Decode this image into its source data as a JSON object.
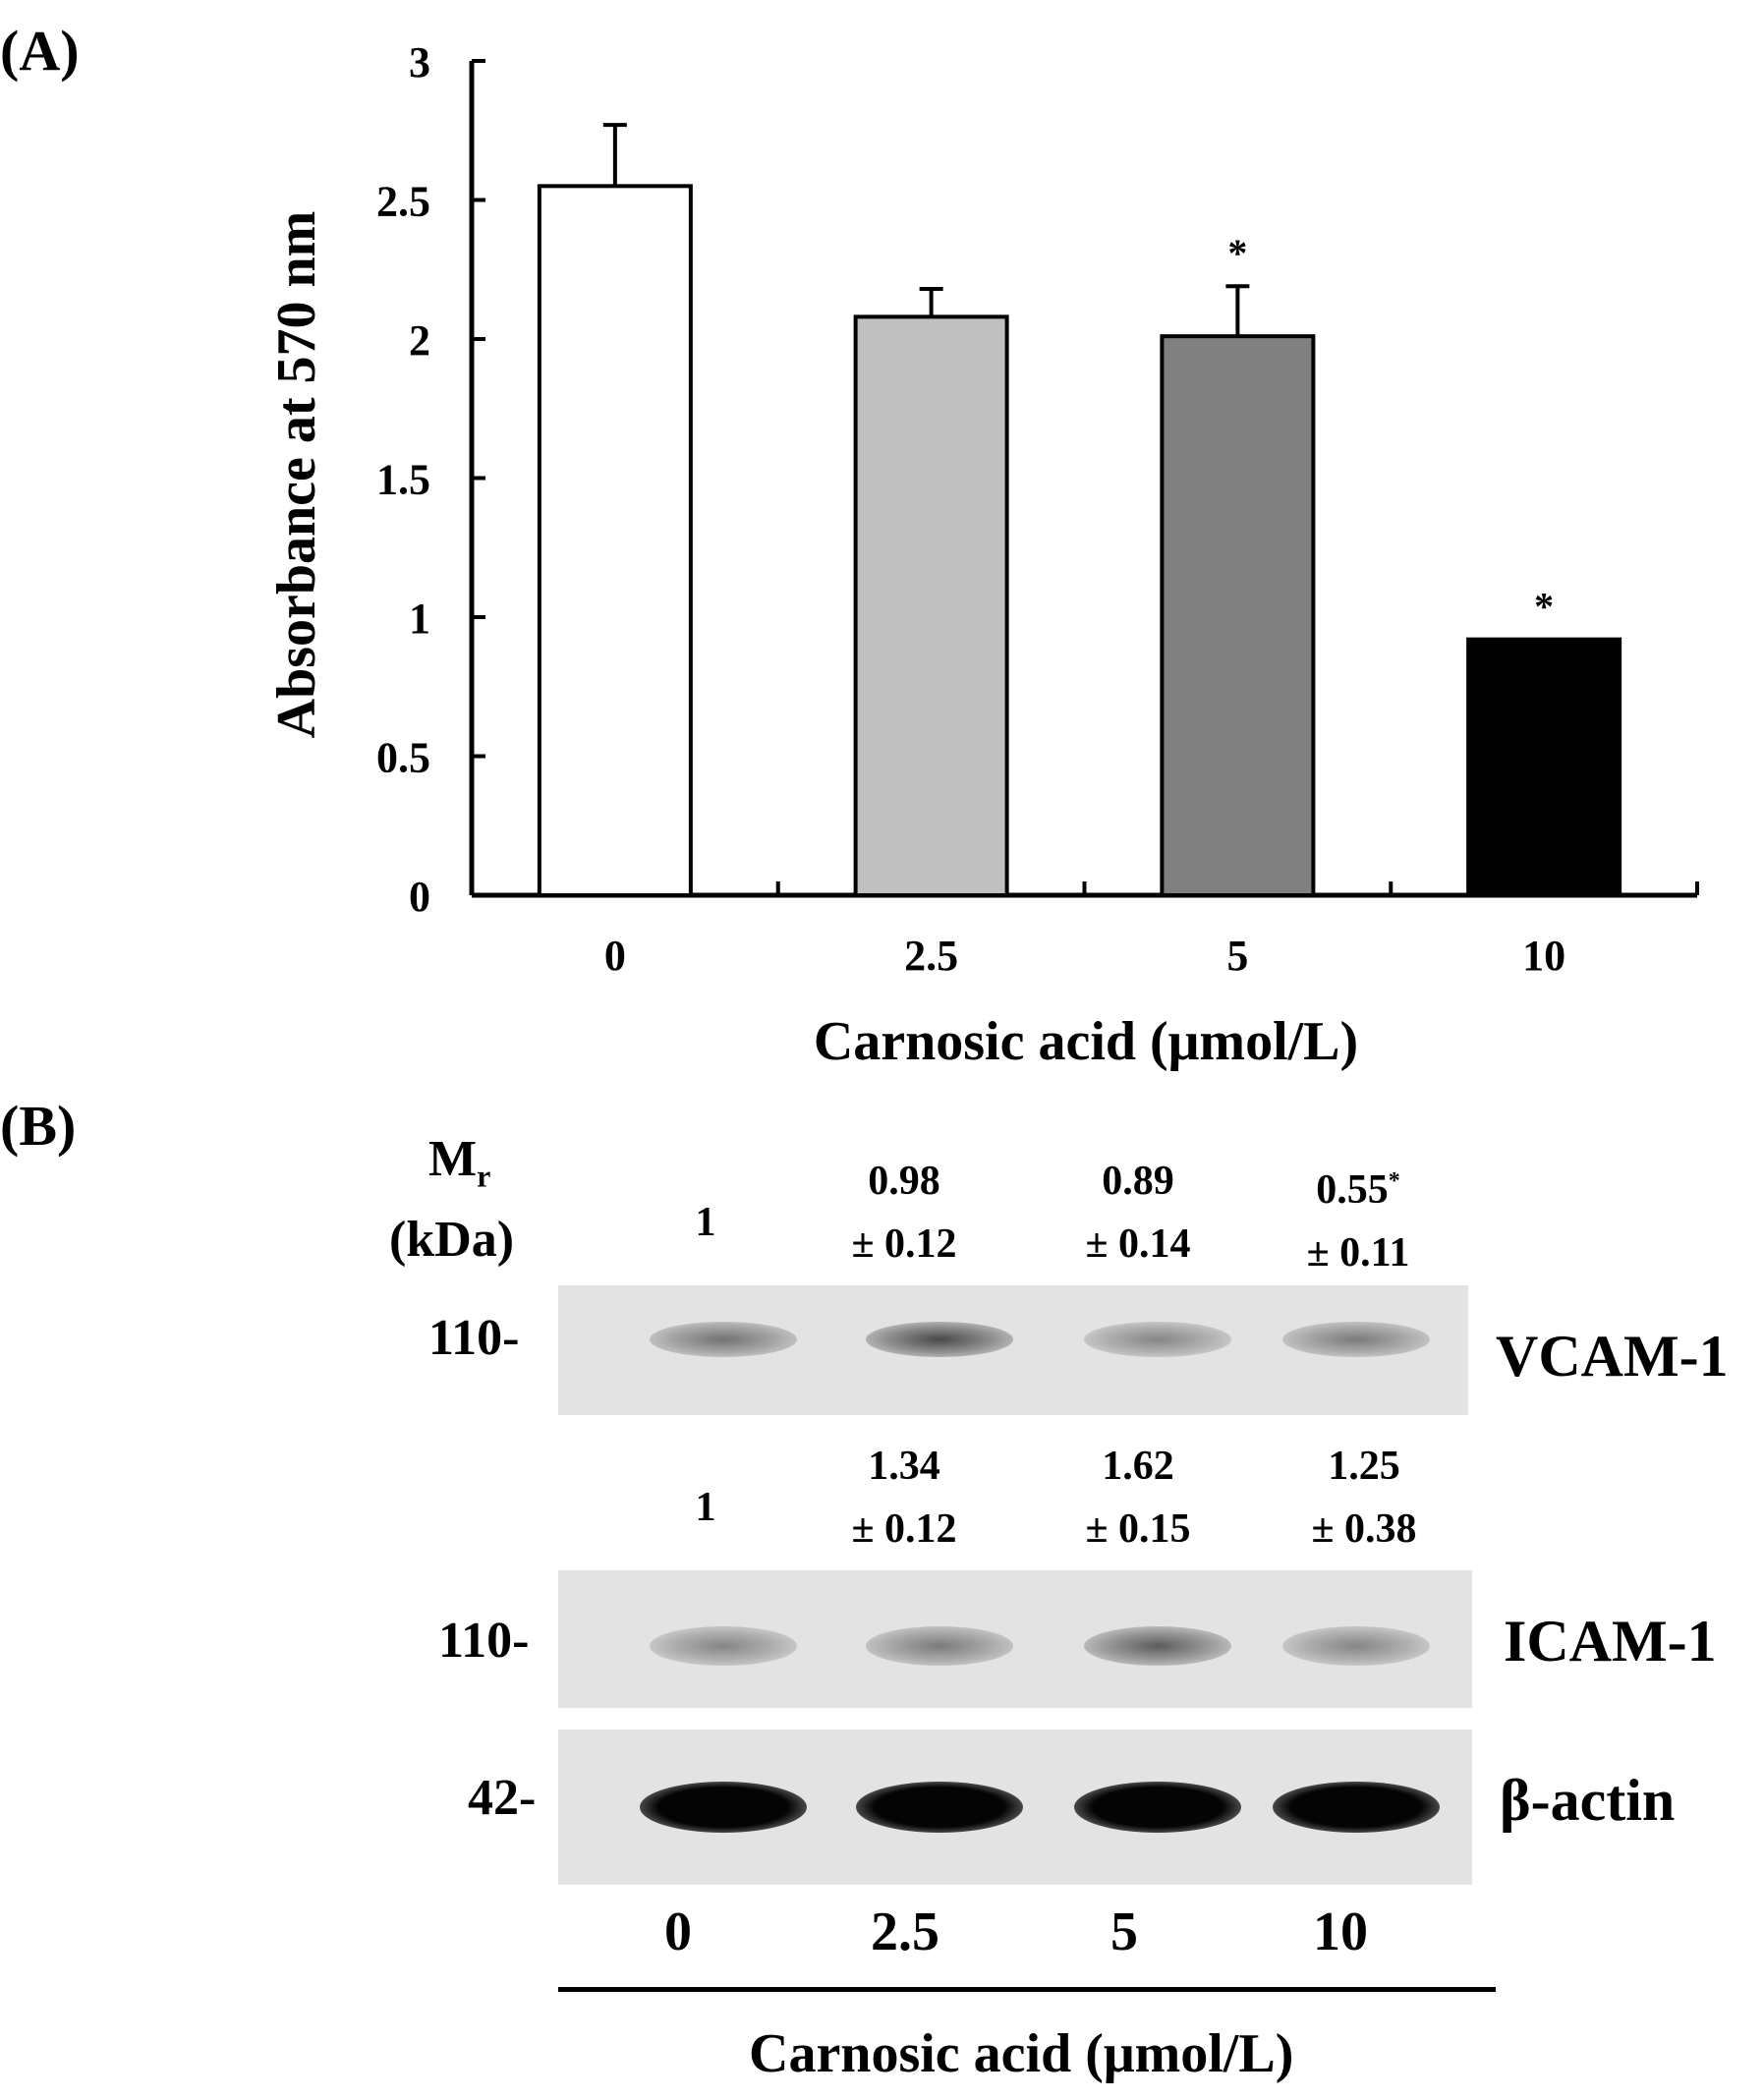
{
  "panel_a": {
    "label": "(A)",
    "chart_data": {
      "type": "bar",
      "categories": [
        "0",
        "2.5",
        "5",
        "10"
      ],
      "values": [
        2.55,
        2.08,
        2.01,
        0.92
      ],
      "errors": [
        0.22,
        0.1,
        0.18,
        null
      ],
      "significance": [
        "",
        "",
        "*",
        "*"
      ],
      "bar_colors": [
        "#ffffff",
        "#c0c0c0",
        "#808080",
        "#000000"
      ],
      "xlabel": "Carnosic acid (μmol/L)",
      "ylabel": "Absorbance at 570 nm",
      "ylim": [
        0,
        3
      ],
      "yticks": [
        "0",
        "0.5",
        "1",
        "1.5",
        "2",
        "2.5",
        "3"
      ],
      "grid": false
    }
  },
  "panel_b": {
    "label": "(B)",
    "mr_main": "M",
    "mr_sub": "r",
    "mr_unit": "(kDa)",
    "vcam": {
      "quant": [
        {
          "value": "1",
          "sd": ""
        },
        {
          "value": "0.98",
          "sd": "± 0.12"
        },
        {
          "value": "0.89",
          "sd": "± 0.14"
        },
        {
          "value": "0.55",
          "mark": "*",
          "sd": "± 0.11"
        }
      ],
      "marker": "110-",
      "name": "VCAM-1",
      "band_intensity": [
        0.55,
        0.75,
        0.45,
        0.5
      ]
    },
    "icam": {
      "quant": [
        {
          "value": "1",
          "sd": ""
        },
        {
          "value": "1.34",
          "sd": "± 0.12"
        },
        {
          "value": "1.62",
          "sd": "± 0.15"
        },
        {
          "value": "1.25",
          "sd": "± 0.38"
        }
      ],
      "marker": "110-",
      "name": "ICAM-1",
      "band_intensity": [
        0.45,
        0.5,
        0.65,
        0.45
      ]
    },
    "actin": {
      "marker": "42-",
      "name": "β-actin",
      "band_intensity": [
        1,
        1,
        1,
        1
      ]
    },
    "lanes": [
      "0",
      "2.5",
      "5",
      "10"
    ],
    "xlabel": "Carnosic acid (μmol/L)"
  }
}
